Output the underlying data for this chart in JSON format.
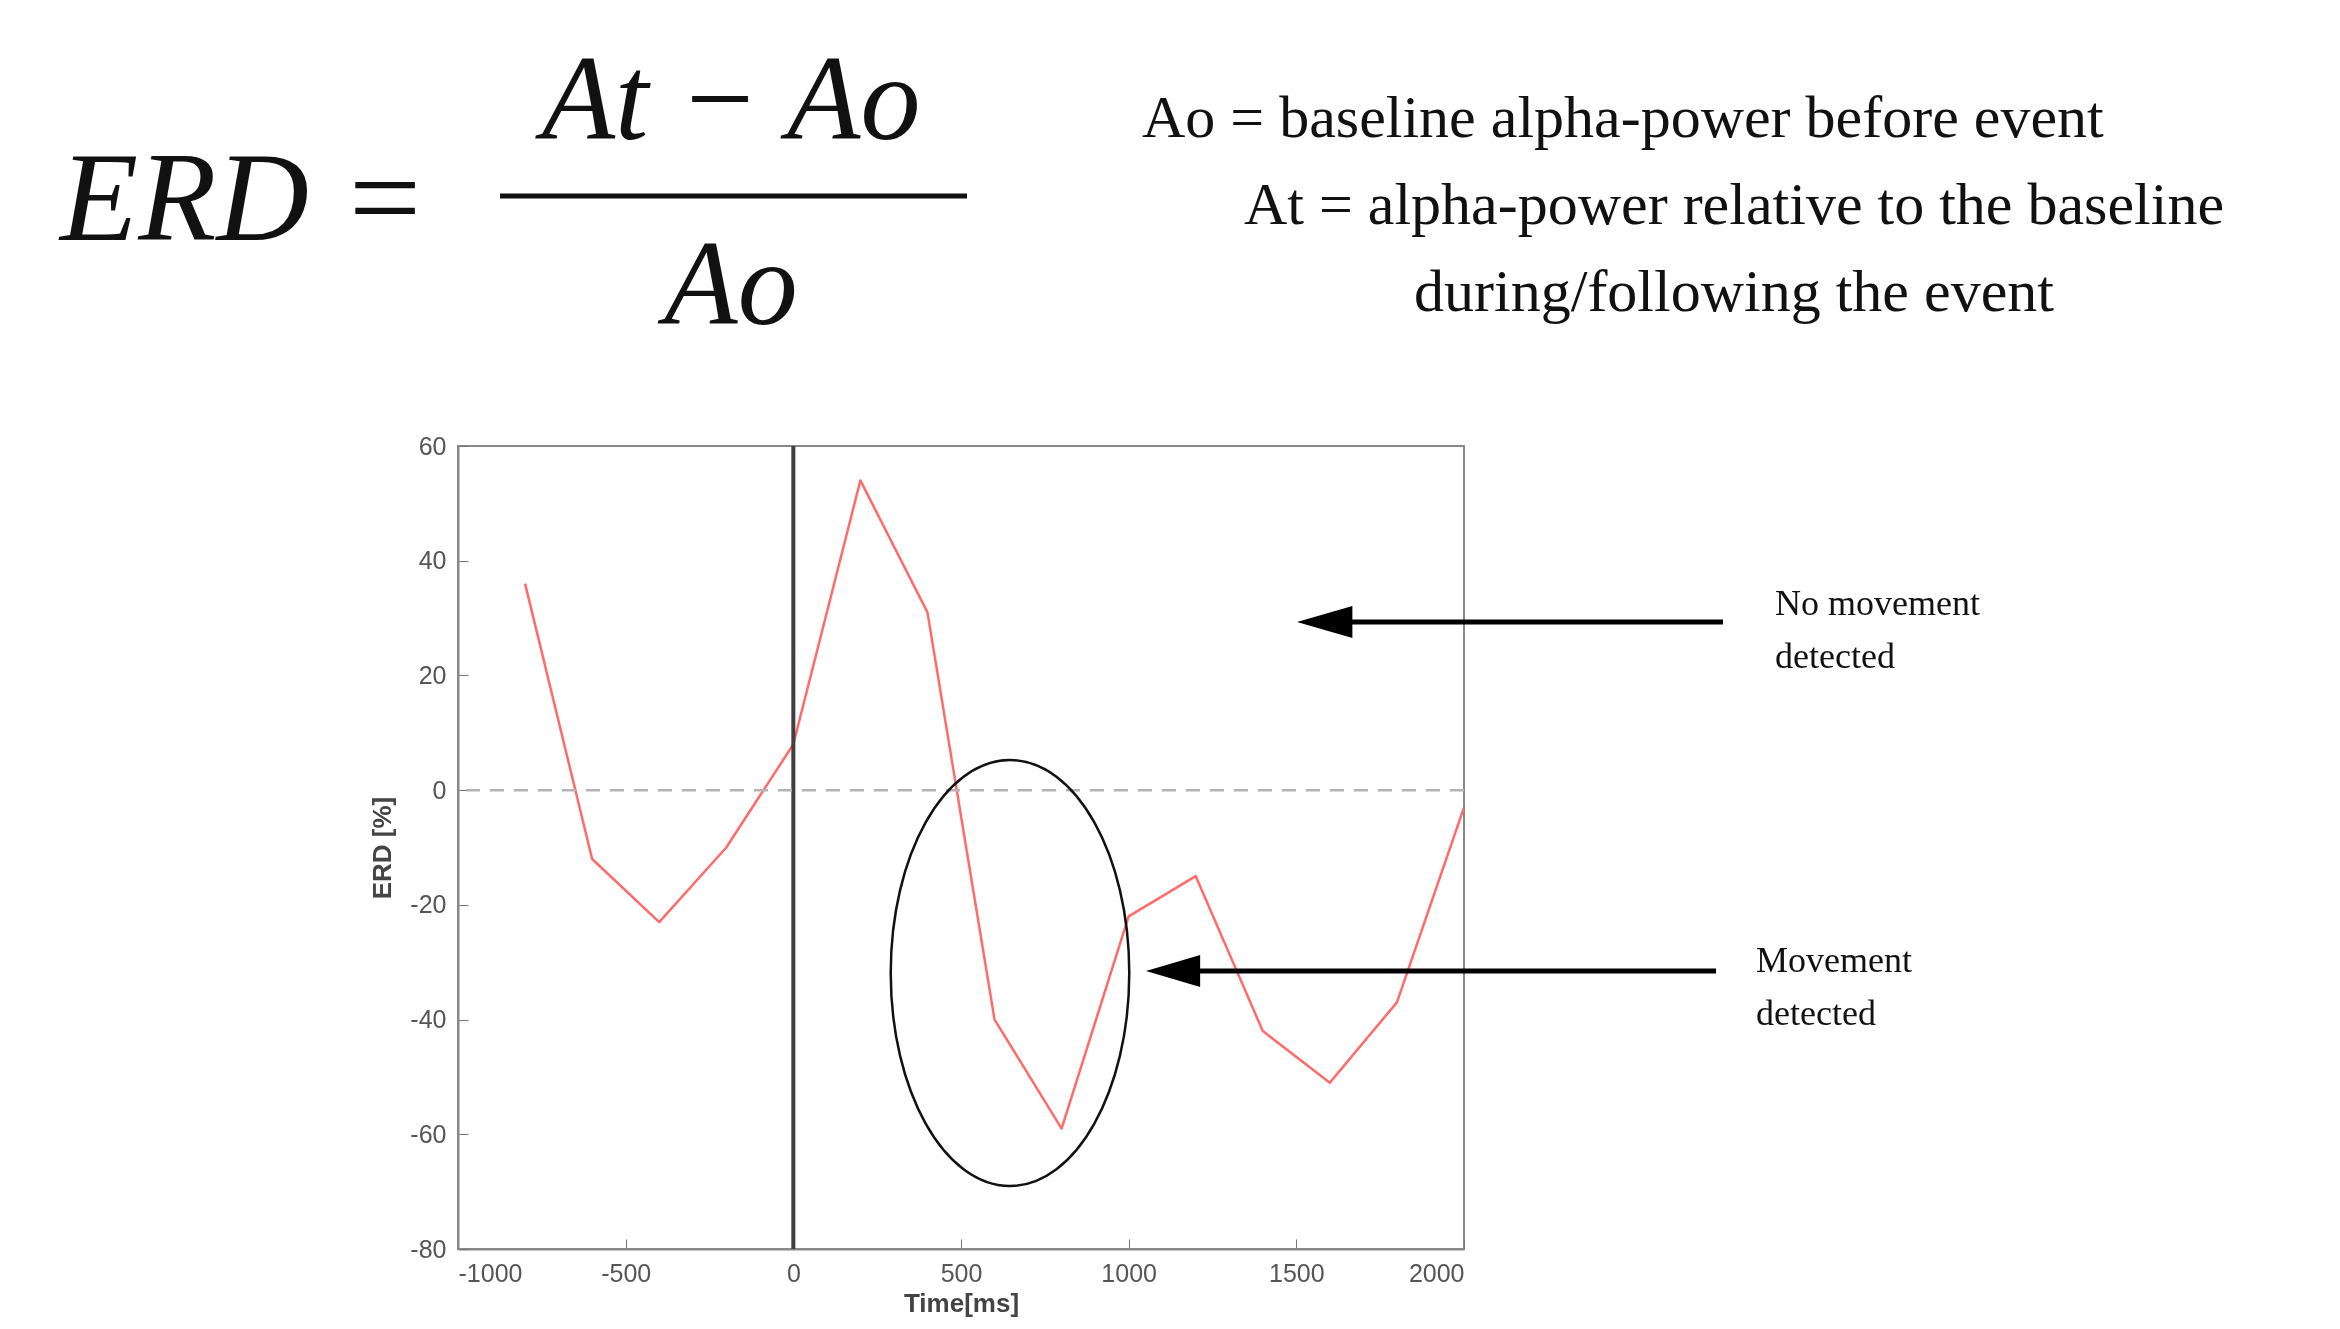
{
  "chart_data": {
    "type": "line",
    "xlabel": "Time[ms]",
    "ylabel": "ERD [%]",
    "x": [
      -800,
      -600,
      -400,
      -200,
      0,
      200,
      400,
      600,
      800,
      1000,
      1200,
      1400,
      1600,
      1800,
      2000
    ],
    "series": [
      {
        "color": "#ff6b6b",
        "values": [
          36,
          -12,
          -23,
          -10,
          8,
          54,
          31,
          -40,
          -59,
          -22,
          -15,
          -42,
          -51,
          -37,
          -3
        ]
      }
    ],
    "xlim": [
      -1000,
      2000
    ],
    "xticks": [
      -1000,
      -500,
      0,
      500,
      1000,
      1500,
      2000
    ],
    "ylim": [
      -80,
      60
    ],
    "yticks": [
      -80,
      -60,
      -40,
      -20,
      0,
      20,
      40,
      60
    ],
    "grid": false,
    "legend": false,
    "marker": "none",
    "line_style": "solid",
    "ref_lines": [
      {
        "axis": "x",
        "value": 0,
        "color": "#404040",
        "line_style": "solid"
      },
      {
        "axis": "y",
        "value": 0,
        "color": "#b3b3b3",
        "line_style": "dashed"
      }
    ],
    "annotations": [
      "ERD =",
      "At − Ao",
      "Ao",
      "Ao = baseline alpha-power before event",
      "At = alpha-power relative to the baseline\nduring/following the event",
      "No movement\ndetected",
      "Movement\ndetected"
    ]
  }
}
